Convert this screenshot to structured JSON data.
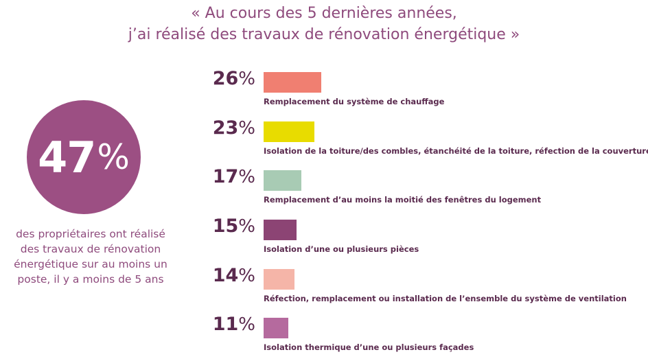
{
  "title_lines": [
    "« Au cours des 5 dernières années,",
    "j’ai réalisé des travaux de rénovation énergétique »"
  ],
  "highlight": {
    "value": "47",
    "unit": "%",
    "description_lines": [
      "des propriétaires ont réalisé",
      "des travaux de rénovation",
      "énergétique sur au moins un",
      "poste, il y a moins de 5 ans"
    ],
    "color": "#9c4f83"
  },
  "chart_data": {
    "type": "bar",
    "orientation": "horizontal",
    "title": "« Au cours des 5 dernières années, j’ai réalisé des travaux de rénovation énergétique »",
    "categories": [
      "Remplacement du système de chauffage",
      "Isolation de la toiture/des combles, étanchéité de la toiture, réfection de la couverture",
      "Remplacement d’au moins la moitié des fenêtres du logement",
      "Isolation d’une ou plusieurs pièces",
      "Réfection, remplacement ou installation de l’ensemble du système de ventilation",
      "Isolation thermique d’une ou plusieurs façades"
    ],
    "values": [
      26,
      23,
      17,
      15,
      14,
      11
    ],
    "value_labels": [
      "26",
      "23",
      "17",
      "15",
      "14",
      "11"
    ],
    "unit": "%",
    "colors": [
      "#f07f71",
      "#e8dc00",
      "#a8cbb4",
      "#8c4474",
      "#f5b5a8",
      "#b56a9e"
    ],
    "grid": false
  }
}
